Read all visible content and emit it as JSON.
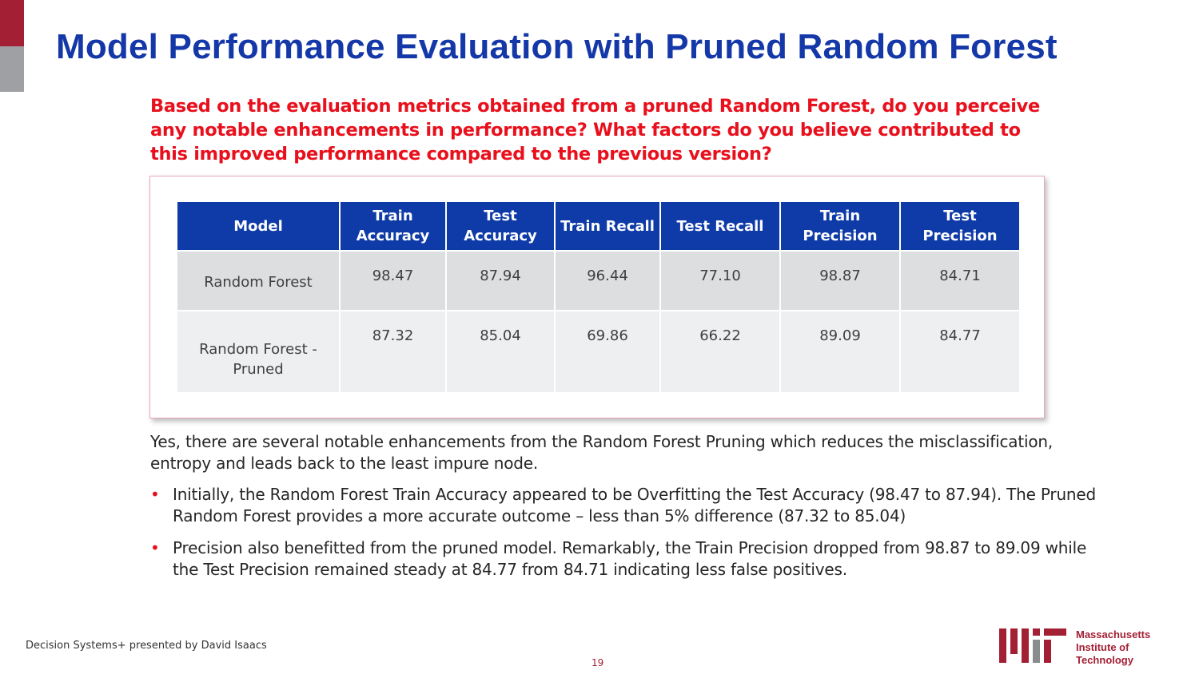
{
  "slide": {
    "title": "Model Performance Evaluation with Pruned Random Forest",
    "question": "Based on the evaluation metrics obtained from a pruned Random Forest, do you perceive any notable enhancements in performance? What factors do you believe contributed to this improved performance compared to the previous version?",
    "colors": {
      "title": "#1438a8",
      "question": "#e8101c",
      "header": "#0f3ba8",
      "mit_red": "#a31f34"
    }
  },
  "table": {
    "headers": [
      "Model",
      "Train Accuracy",
      "Test Accuracy",
      "Train Recall",
      "Test Recall",
      "Train Precision",
      "Test Precision"
    ],
    "rows": [
      [
        "Random Forest",
        "98.47",
        "87.94",
        "96.44",
        "77.10",
        "98.87",
        "84.71"
      ],
      [
        "Random Forest - Pruned",
        "87.32",
        "85.04",
        "69.86",
        "66.22",
        "89.09",
        "84.77"
      ]
    ]
  },
  "answer": {
    "intro": "Yes, there are several notable enhancements from the Random Forest Pruning which reduces the misclassification, entropy and leads back to the least impure node.",
    "bullets": [
      "Initially, the Random Forest Train Accuracy appeared to be Overfitting the Test Accuracy (98.47 to 87.94). The Pruned Random Forest provides a more accurate outcome – less than 5% difference (87.32 to 85.04)",
      "Precision also benefitted from the pruned model. Remarkably, the Train Precision dropped from 98.87 to 89.09 while the Test Precision remained steady at 84.77 from 84.71 indicating less false positives."
    ]
  },
  "footer": {
    "credit": "Decision Systems+ presented by David Isaacs",
    "page_number": "19",
    "logo_lines": [
      "Massachusetts",
      "Institute of",
      "Technology"
    ]
  }
}
